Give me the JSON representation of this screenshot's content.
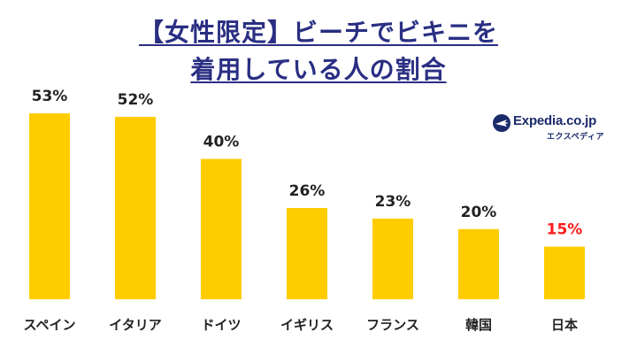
{
  "chart_data": {
    "type": "bar",
    "title_line1": "【女性限定】ビーチでビキニを",
    "title_line2": "着用している人の割合",
    "categories": [
      "スペイン",
      "イタリア",
      "ドイツ",
      "イギリス",
      "フランス",
      "韓国",
      "日本"
    ],
    "values": [
      53,
      52,
      40,
      26,
      23,
      20,
      15
    ],
    "value_labels": [
      "53%",
      "52%",
      "40%",
      "26%",
      "23%",
      "20%",
      "15%"
    ],
    "highlight_index": 6,
    "ylim": [
      0,
      53
    ],
    "xlabel": "",
    "ylabel": "",
    "grid": false
  },
  "logo": {
    "brand": "Expedia.co.jp",
    "sub": "エクスペディア",
    "icon": "plane-globe-icon"
  },
  "colors": {
    "bar": "#ffcc00",
    "title": "#2a2f83",
    "label": "#222222",
    "highlight_label": "#ff1a1a",
    "logo": "#1b2a6b"
  }
}
